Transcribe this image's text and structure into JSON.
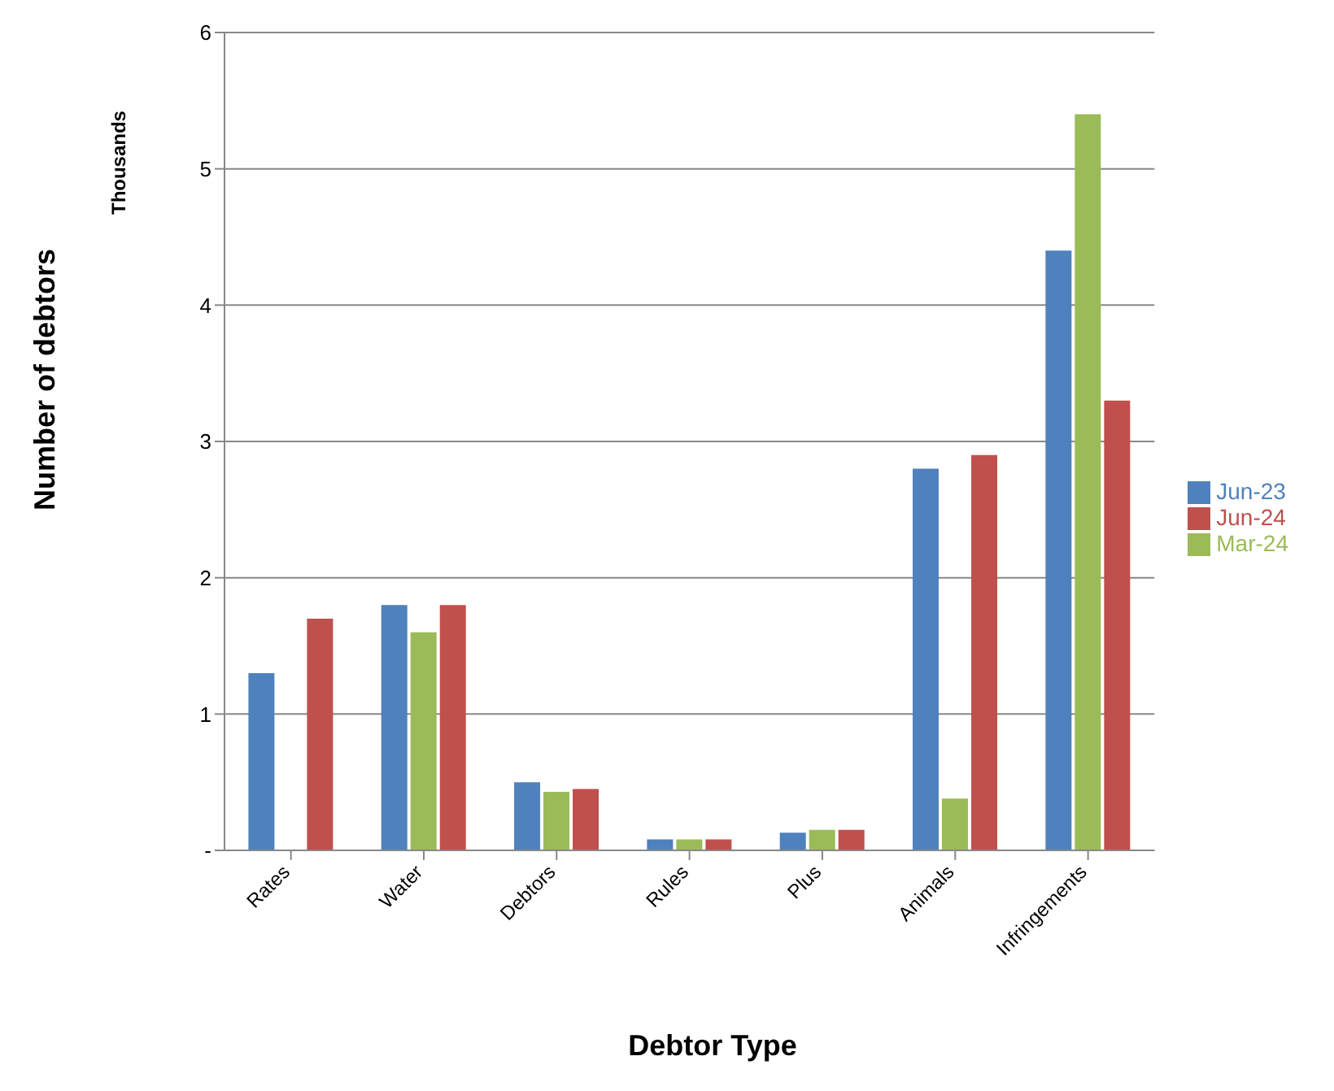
{
  "chart_data": {
    "type": "bar",
    "xlabel": "Debtor Type",
    "ylabel": "Number of debtors",
    "annotations": [
      "Thousands"
    ],
    "categories": [
      "Rates",
      "Water",
      "Debtors",
      "Rules",
      "Plus",
      "Animals",
      "Infringements"
    ],
    "series": [
      {
        "name": "Jun-23",
        "color": "#4f81bd",
        "values": [
          1.3,
          1.8,
          0.5,
          0.08,
          0.13,
          2.8,
          4.4
        ]
      },
      {
        "name": "Mar-24",
        "color": "#9bbb59",
        "values": [
          null,
          1.6,
          0.43,
          0.08,
          0.15,
          0.38,
          5.4
        ]
      },
      {
        "name": "Jun-24",
        "color": "#c0504d",
        "values": [
          1.7,
          1.8,
          0.45,
          0.08,
          0.15,
          2.9,
          3.3
        ]
      }
    ],
    "ylim": [
      0,
      6
    ],
    "yticks": [
      {
        "value": 0,
        "label": "-"
      },
      1,
      2,
      3,
      4,
      5,
      6
    ],
    "grid": "y",
    "legend": "right"
  }
}
